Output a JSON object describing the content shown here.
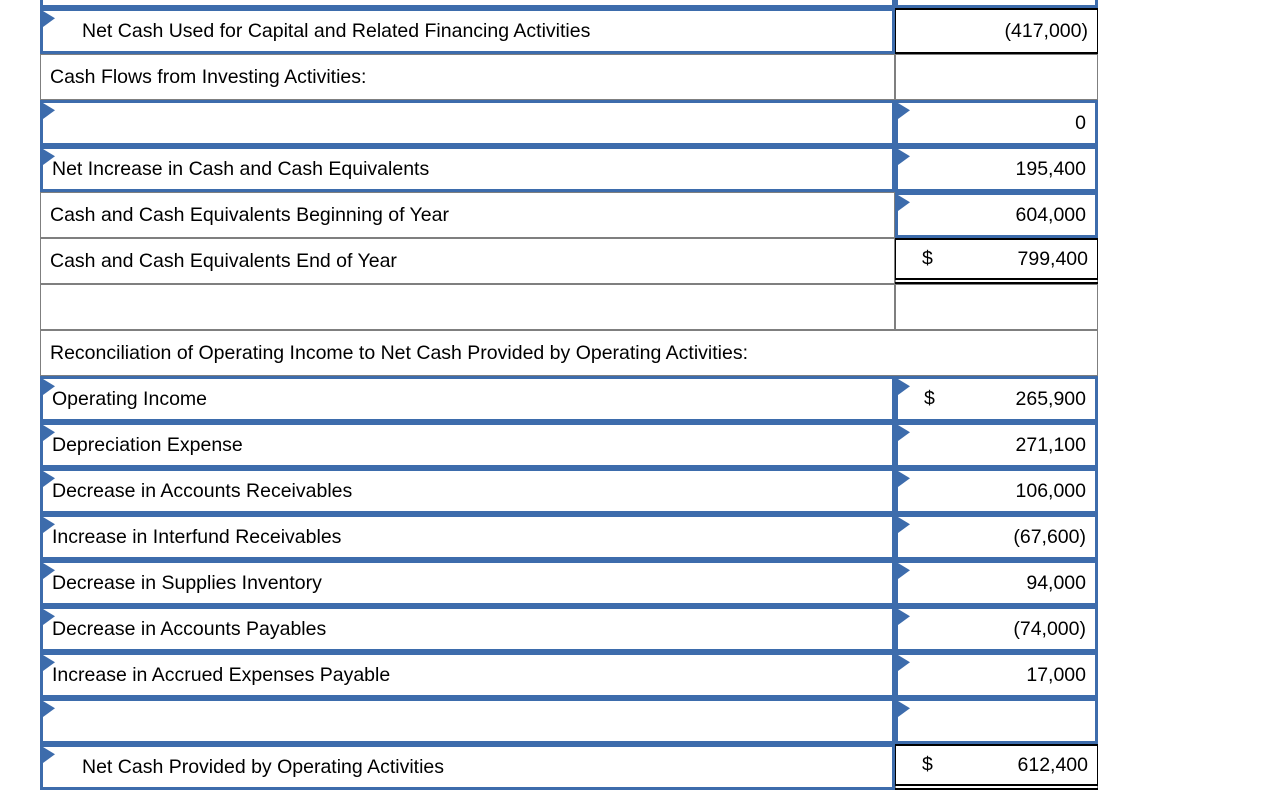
{
  "table": {
    "title": "statement-of-cash-flows-worksheet",
    "colors": {
      "input_border": "#3D6CAC",
      "flag": "#3D6CAC",
      "grid_border": "#7F7F7F",
      "result_border": "#000000",
      "text": "#000000",
      "background": "#FFFFFF"
    },
    "rows": [
      {
        "kind": "partial",
        "label": {
          "text": "",
          "style": "input",
          "flag": false
        },
        "value": {
          "text": "",
          "style": "input",
          "flag": false
        }
      },
      {
        "label": {
          "text": "Net Cash Used for Capital and Related Financing Activities",
          "style": "input",
          "flag": true,
          "indent": true
        },
        "value": {
          "text": "(417,000)",
          "style": "result-single",
          "flag": false
        }
      },
      {
        "label": {
          "text": "Cash Flows from Investing Activities:",
          "style": "plain",
          "flag": false
        },
        "value": {
          "text": "",
          "style": "plain",
          "flag": false
        }
      },
      {
        "label": {
          "text": "",
          "style": "input",
          "flag": true
        },
        "value": {
          "text": "0",
          "style": "input",
          "flag": true
        }
      },
      {
        "label": {
          "text": "Net Increase in Cash and Cash Equivalents",
          "style": "input",
          "flag": true
        },
        "value": {
          "text": "195,400",
          "style": "input",
          "flag": true
        }
      },
      {
        "label": {
          "text": "Cash and Cash Equivalents Beginning of Year",
          "style": "plain",
          "flag": false
        },
        "value": {
          "text": "604,000",
          "style": "input",
          "flag": true
        }
      },
      {
        "label": {
          "text": "Cash and Cash Equivalents End of Year",
          "style": "plain",
          "flag": false
        },
        "value": {
          "text": "799,400",
          "style": "result-double",
          "flag": false,
          "dollar": "$"
        }
      },
      {
        "label": {
          "text": "",
          "style": "plain",
          "flag": false
        },
        "value": {
          "text": "",
          "style": "plain",
          "flag": false
        }
      },
      {
        "kind": "merged",
        "label": {
          "text": "Reconciliation of Operating Income to Net Cash Provided by Operating Activities:",
          "style": "plain",
          "flag": false
        }
      },
      {
        "label": {
          "text": "Operating Income",
          "style": "input",
          "flag": true
        },
        "value": {
          "text": "265,900",
          "style": "input",
          "flag": true,
          "dollar": "$"
        }
      },
      {
        "label": {
          "text": "Depreciation Expense",
          "style": "input",
          "flag": true
        },
        "value": {
          "text": "271,100",
          "style": "input",
          "flag": true
        }
      },
      {
        "label": {
          "text": "Decrease in Accounts Receivables",
          "style": "input",
          "flag": true
        },
        "value": {
          "text": "106,000",
          "style": "input",
          "flag": true
        }
      },
      {
        "label": {
          "text": "Increase in Interfund Receivables",
          "style": "input",
          "flag": true
        },
        "value": {
          "text": "(67,600)",
          "style": "input",
          "flag": true
        }
      },
      {
        "label": {
          "text": "Decrease in Supplies Inventory",
          "style": "input",
          "flag": true
        },
        "value": {
          "text": "94,000",
          "style": "input",
          "flag": true
        }
      },
      {
        "label": {
          "text": "Decrease in Accounts Payables",
          "style": "input",
          "flag": true
        },
        "value": {
          "text": "(74,000)",
          "style": "input",
          "flag": true
        }
      },
      {
        "label": {
          "text": "Increase in Accrued Expenses Payable",
          "style": "input",
          "flag": true
        },
        "value": {
          "text": "17,000",
          "style": "input",
          "flag": true
        }
      },
      {
        "label": {
          "text": "",
          "style": "input",
          "flag": true
        },
        "value": {
          "text": "",
          "style": "input",
          "flag": true
        }
      },
      {
        "label": {
          "text": "Net Cash Provided by Operating Activities",
          "style": "input",
          "flag": true,
          "indent": true
        },
        "value": {
          "text": "612,400",
          "style": "result-double",
          "flag": false,
          "dollar": "$"
        }
      }
    ]
  }
}
